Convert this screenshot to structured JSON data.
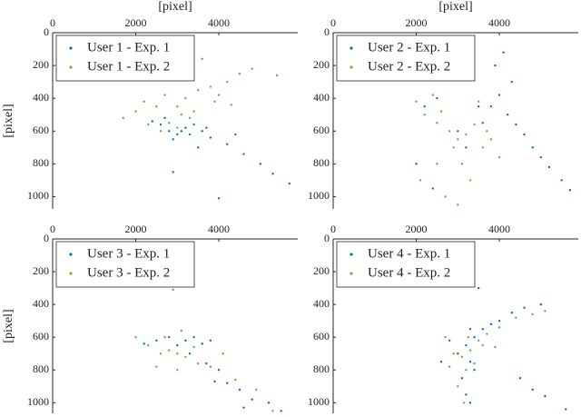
{
  "chart_data": [
    {
      "type": "scatter",
      "xlabel": "[pixel]",
      "ylabel": "[pixel]",
      "xlim": [
        0,
        5900
      ],
      "ylim": [
        0,
        1075
      ],
      "xticks": [
        0,
        2000,
        4000
      ],
      "yticks": [
        0,
        200,
        400,
        600,
        800,
        1000
      ],
      "y_reversed": true,
      "legend": "upper left",
      "series": [
        {
          "name": "User 1 - Exp. 1",
          "color": "#0072BD",
          "x": [
            2600,
            2800,
            3000,
            3200,
            3400,
            2900,
            3100,
            2700,
            3300,
            3600,
            3800,
            4200,
            4600,
            5000,
            5300,
            5700,
            2900,
            4000,
            3500,
            2400,
            3700,
            4400
          ],
          "values": [
            560,
            600,
            620,
            580,
            560,
            650,
            600,
            520,
            620,
            600,
            640,
            680,
            740,
            800,
            860,
            920,
            850,
            1010,
            700,
            540,
            580,
            620
          ]
        },
        {
          "name": "User 1 - Exp. 2",
          "color": "#77AC30",
          "x": [
            2000,
            2200,
            2500,
            2700,
            3000,
            3200,
            3500,
            3800,
            4200,
            4500,
            4800,
            5400,
            3300,
            2800,
            3000,
            3400,
            2600,
            3900,
            1700,
            3600,
            2300,
            3100,
            4000,
            4300
          ],
          "values": [
            480,
            420,
            450,
            380,
            450,
            400,
            350,
            330,
            300,
            250,
            220,
            260,
            520,
            550,
            580,
            480,
            600,
            420,
            520,
            160,
            560,
            500,
            380,
            440
          ]
        }
      ]
    },
    {
      "type": "scatter",
      "xlabel": "[pixel]",
      "xlim": [
        0,
        5900
      ],
      "ylim": [
        0,
        1075
      ],
      "xticks": [
        0,
        2000,
        4000
      ],
      "yticks": [
        0,
        200,
        400,
        600,
        800,
        1000
      ],
      "y_reversed": true,
      "legend": "upper left",
      "series": [
        {
          "name": "User 2 - Exp. 1",
          "color": "#0072BD",
          "x": [
            2200,
            2500,
            3000,
            3500,
            3800,
            4000,
            4200,
            4400,
            4600,
            4800,
            5000,
            5200,
            5500,
            5700,
            3900,
            4100,
            4300,
            2000,
            2400,
            3200,
            3600
          ],
          "values": [
            450,
            400,
            600,
            450,
            450,
            380,
            500,
            560,
            620,
            700,
            760,
            820,
            900,
            960,
            200,
            120,
            300,
            800,
            950,
            700,
            550
          ]
        },
        {
          "name": "User 2 - Exp. 2",
          "color": "#77AC30",
          "x": [
            2200,
            2500,
            2800,
            3000,
            3200,
            3400,
            2600,
            2900,
            3100,
            3300,
            2700,
            3000,
            2100,
            3600,
            3800,
            2400,
            3500,
            2000,
            2500,
            3700,
            4000
          ],
          "values": [
            500,
            550,
            600,
            650,
            620,
            560,
            480,
            700,
            800,
            900,
            1000,
            1050,
            900,
            700,
            650,
            380,
            420,
            420,
            800,
            600,
            760
          ]
        }
      ]
    },
    {
      "type": "scatter",
      "ylabel": "[pixel]",
      "xlim": [
        0,
        5900
      ],
      "ylim": [
        0,
        1065
      ],
      "xticks": [
        0,
        2000,
        4000
      ],
      "yticks": [
        0,
        200,
        400,
        600,
        800,
        1000
      ],
      "y_reversed": true,
      "legend": "upper left",
      "series": [
        {
          "name": "User 3 - Exp. 1",
          "color": "#0072BD",
          "x": [
            2200,
            2500,
            2800,
            3000,
            3200,
            3400,
            3600,
            3800,
            3300,
            3700,
            4000,
            4200,
            4500,
            4800,
            5200,
            5500,
            3900,
            4600
          ],
          "values": [
            640,
            620,
            600,
            650,
            620,
            600,
            640,
            620,
            700,
            760,
            800,
            880,
            920,
            980,
            1000,
            1050,
            870,
            1030
          ]
        },
        {
          "name": "User 3 - Exp. 2",
          "color": "#77AC30",
          "x": [
            2000,
            2300,
            2600,
            2800,
            3000,
            3200,
            3400,
            2700,
            3100,
            2900,
            3500,
            3800,
            4100,
            4400,
            2500,
            3000,
            4900,
            5300
          ],
          "values": [
            600,
            650,
            700,
            680,
            700,
            720,
            660,
            600,
            560,
            310,
            760,
            780,
            700,
            860,
            780,
            800,
            920,
            1050
          ]
        }
      ]
    },
    {
      "type": "scatter",
      "xlim": [
        0,
        5900
      ],
      "ylim": [
        0,
        1065
      ],
      "xticks": [
        0,
        2000,
        4000
      ],
      "yticks": [
        0,
        200,
        400,
        600,
        800,
        1000
      ],
      "y_reversed": true,
      "legend": "upper left",
      "series": [
        {
          "name": "User 4 - Exp. 1",
          "color": "#0072BD",
          "x": [
            3000,
            3200,
            3400,
            3600,
            3800,
            4000,
            4300,
            4600,
            5000,
            3300,
            3100,
            3200,
            3300,
            2800,
            2600,
            3500,
            3300,
            4500,
            4800,
            5100,
            5600,
            3400
          ],
          "values": [
            700,
            650,
            600,
            550,
            520,
            500,
            450,
            420,
            400,
            750,
            850,
            950,
            1000,
            620,
            750,
            300,
            550,
            850,
            920,
            960,
            1040,
            800
          ]
        },
        {
          "name": "User 4 - Exp. 2",
          "color": "#77AC30",
          "x": [
            2900,
            3100,
            3300,
            3500,
            3700,
            4000,
            4400,
            4800,
            5100,
            3200,
            3000,
            2800,
            3400,
            3600,
            2700,
            3900,
            3250,
            3150
          ],
          "values": [
            700,
            720,
            680,
            620,
            580,
            540,
            480,
            460,
            440,
            800,
            900,
            780,
            760,
            650,
            600,
            660,
            600,
            1000
          ]
        }
      ]
    }
  ]
}
